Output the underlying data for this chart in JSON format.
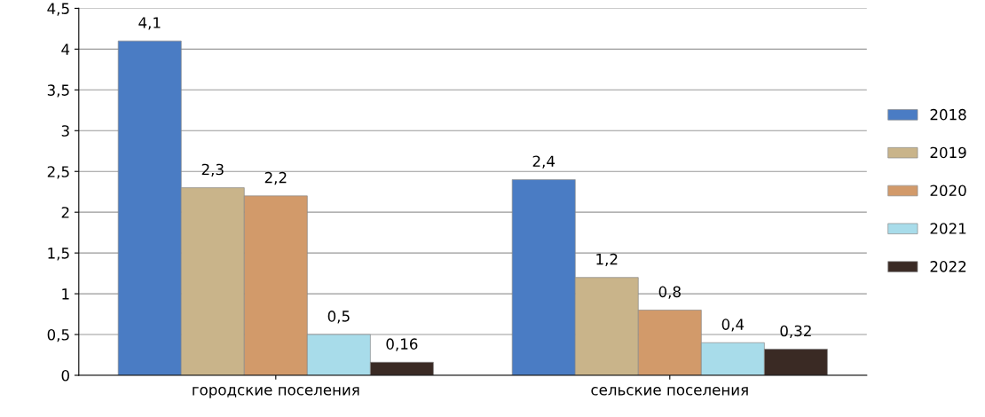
{
  "chart_data": {
    "type": "bar",
    "categories": [
      "городские поселения",
      "сельские поселения"
    ],
    "series": [
      {
        "name": "2018",
        "color": "#4a7cc4",
        "values": [
          4.1,
          2.4
        ],
        "value_labels": [
          "4,1",
          "2,4"
        ]
      },
      {
        "name": "2019",
        "color": "#c9b48a",
        "values": [
          2.3,
          1.2
        ],
        "value_labels": [
          "2,3",
          "1,2"
        ]
      },
      {
        "name": "2020",
        "color": "#d29a6a",
        "values": [
          2.2,
          0.8
        ],
        "value_labels": [
          "2,2",
          "0,8"
        ]
      },
      {
        "name": "2021",
        "color": "#a8dcea",
        "values": [
          0.5,
          0.4
        ],
        "value_labels": [
          "0,5",
          "0,4"
        ]
      },
      {
        "name": "2022",
        "color": "#3a2a24",
        "values": [
          0.16,
          0.32
        ],
        "value_labels": [
          "0,16",
          "0,32"
        ]
      }
    ],
    "ylim": [
      0,
      4.5
    ],
    "yticks": [
      0,
      {
        "value": 0.5,
        "label": "0,5"
      },
      1,
      {
        "value": 1.5,
        "label": "1,5"
      },
      2,
      {
        "value": 2.5,
        "label": "2,5"
      },
      3,
      {
        "value": 3.5,
        "label": "3,5"
      },
      4,
      {
        "value": 4.5,
        "label": "4,5"
      }
    ],
    "grid": "y",
    "legend": "right"
  }
}
